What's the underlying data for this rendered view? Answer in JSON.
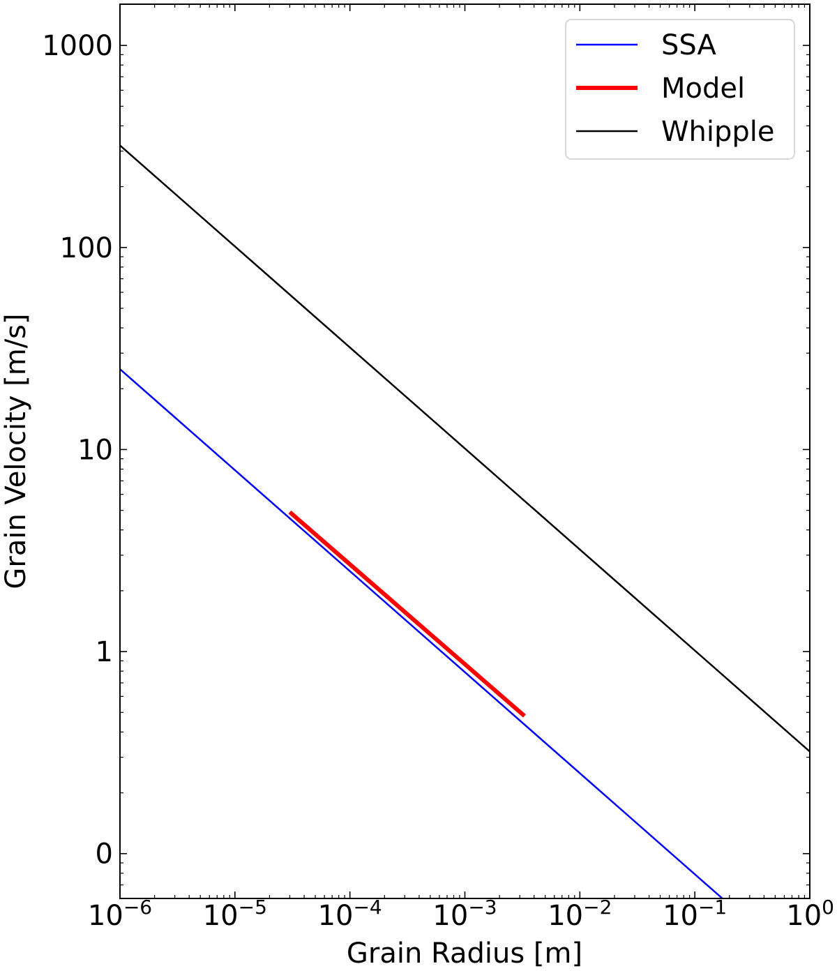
{
  "chart_data": {
    "type": "line",
    "xlabel": "Grain Radius [m]",
    "ylabel": "Grain Velocity [m/s]",
    "x_scale": "log",
    "y_scale": "log",
    "xlim": [
      1e-06,
      1
    ],
    "ylim": [
      0.06,
      1600
    ],
    "x_ticks": [
      {
        "value": 1e-06,
        "base": "10",
        "exp": "−6"
      },
      {
        "value": 1e-05,
        "base": "10",
        "exp": "−5"
      },
      {
        "value": 0.0001,
        "base": "10",
        "exp": "−4"
      },
      {
        "value": 0.001,
        "base": "10",
        "exp": "−3"
      },
      {
        "value": 0.01,
        "base": "10",
        "exp": "−2"
      },
      {
        "value": 0.1,
        "base": "10",
        "exp": "−1"
      },
      {
        "value": 1,
        "base": "10",
        "exp": "0"
      }
    ],
    "y_ticks": [
      {
        "value": 0.1,
        "label": "0"
      },
      {
        "value": 1,
        "label": "1"
      },
      {
        "value": 10,
        "label": "10"
      },
      {
        "value": 100,
        "label": "100"
      },
      {
        "value": 1000,
        "label": "1000"
      }
    ],
    "grid": false,
    "legend": {
      "position": "top-right"
    },
    "series": [
      {
        "name": "SSA",
        "color": "#0000ff",
        "width": 2.5,
        "x": [
          1e-06,
          1
        ],
        "y": [
          25,
          0.025
        ]
      },
      {
        "name": "Model",
        "color": "#ff0000",
        "width": 6,
        "x": [
          3e-05,
          0.0033
        ],
        "y": [
          4.9,
          0.48
        ]
      },
      {
        "name": "Whipple",
        "color": "#000000",
        "width": 2.5,
        "x": [
          1e-06,
          1
        ],
        "y": [
          320,
          0.32
        ]
      }
    ]
  }
}
